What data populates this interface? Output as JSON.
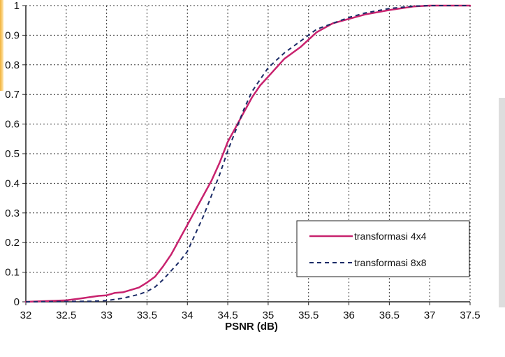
{
  "chart_data": {
    "type": "line",
    "title": "",
    "xlabel": "PSNR (dB)",
    "ylabel": "",
    "xlim": [
      32,
      37.5
    ],
    "ylim": [
      0,
      1
    ],
    "x_ticks": [
      "32",
      "32.5",
      "33",
      "33.5",
      "34",
      "34.5",
      "35",
      "35.5",
      "36",
      "36.5",
      "37",
      "37.5"
    ],
    "y_ticks": [
      "0",
      "0.1",
      "0.2",
      "0.3",
      "0.4",
      "0.5",
      "0.6",
      "0.7",
      "0.8",
      "0.9",
      "1"
    ],
    "grid": true,
    "legend_position": "bottom-right",
    "series": [
      {
        "name": "transformasi 4x4",
        "color": "#c8226e",
        "style": "solid",
        "points": [
          [
            32.0,
            0.0
          ],
          [
            32.5,
            0.005
          ],
          [
            32.7,
            0.012
          ],
          [
            32.9,
            0.02
          ],
          [
            33.0,
            0.022
          ],
          [
            33.1,
            0.03
          ],
          [
            33.2,
            0.032
          ],
          [
            33.4,
            0.048
          ],
          [
            33.5,
            0.065
          ],
          [
            33.6,
            0.085
          ],
          [
            33.7,
            0.12
          ],
          [
            33.8,
            0.16
          ],
          [
            33.9,
            0.21
          ],
          [
            34.0,
            0.26
          ],
          [
            34.1,
            0.31
          ],
          [
            34.2,
            0.36
          ],
          [
            34.3,
            0.41
          ],
          [
            34.4,
            0.47
          ],
          [
            34.5,
            0.54
          ],
          [
            34.6,
            0.59
          ],
          [
            34.7,
            0.64
          ],
          [
            34.8,
            0.69
          ],
          [
            34.9,
            0.73
          ],
          [
            35.0,
            0.76
          ],
          [
            35.2,
            0.82
          ],
          [
            35.4,
            0.86
          ],
          [
            35.6,
            0.91
          ],
          [
            35.8,
            0.94
          ],
          [
            36.0,
            0.955
          ],
          [
            36.2,
            0.97
          ],
          [
            36.5,
            0.985
          ],
          [
            36.8,
            0.997
          ],
          [
            37.0,
            1.0
          ],
          [
            37.5,
            1.0
          ]
        ]
      },
      {
        "name": "transformasi 8x8",
        "color": "#1a2a66",
        "style": "dashed",
        "points": [
          [
            32.0,
            0.0
          ],
          [
            32.8,
            0.002
          ],
          [
            33.0,
            0.004
          ],
          [
            33.2,
            0.012
          ],
          [
            33.4,
            0.025
          ],
          [
            33.5,
            0.035
          ],
          [
            33.6,
            0.05
          ],
          [
            33.7,
            0.075
          ],
          [
            33.8,
            0.105
          ],
          [
            33.9,
            0.135
          ],
          [
            34.0,
            0.17
          ],
          [
            34.1,
            0.23
          ],
          [
            34.2,
            0.29
          ],
          [
            34.3,
            0.36
          ],
          [
            34.4,
            0.43
          ],
          [
            34.5,
            0.51
          ],
          [
            34.6,
            0.58
          ],
          [
            34.7,
            0.65
          ],
          [
            34.8,
            0.71
          ],
          [
            34.9,
            0.75
          ],
          [
            35.0,
            0.79
          ],
          [
            35.2,
            0.84
          ],
          [
            35.4,
            0.88
          ],
          [
            35.6,
            0.92
          ],
          [
            35.8,
            0.94
          ],
          [
            36.0,
            0.96
          ],
          [
            36.2,
            0.975
          ],
          [
            36.5,
            0.99
          ],
          [
            36.8,
            0.998
          ],
          [
            37.0,
            1.0
          ],
          [
            37.5,
            1.0
          ]
        ]
      }
    ]
  }
}
